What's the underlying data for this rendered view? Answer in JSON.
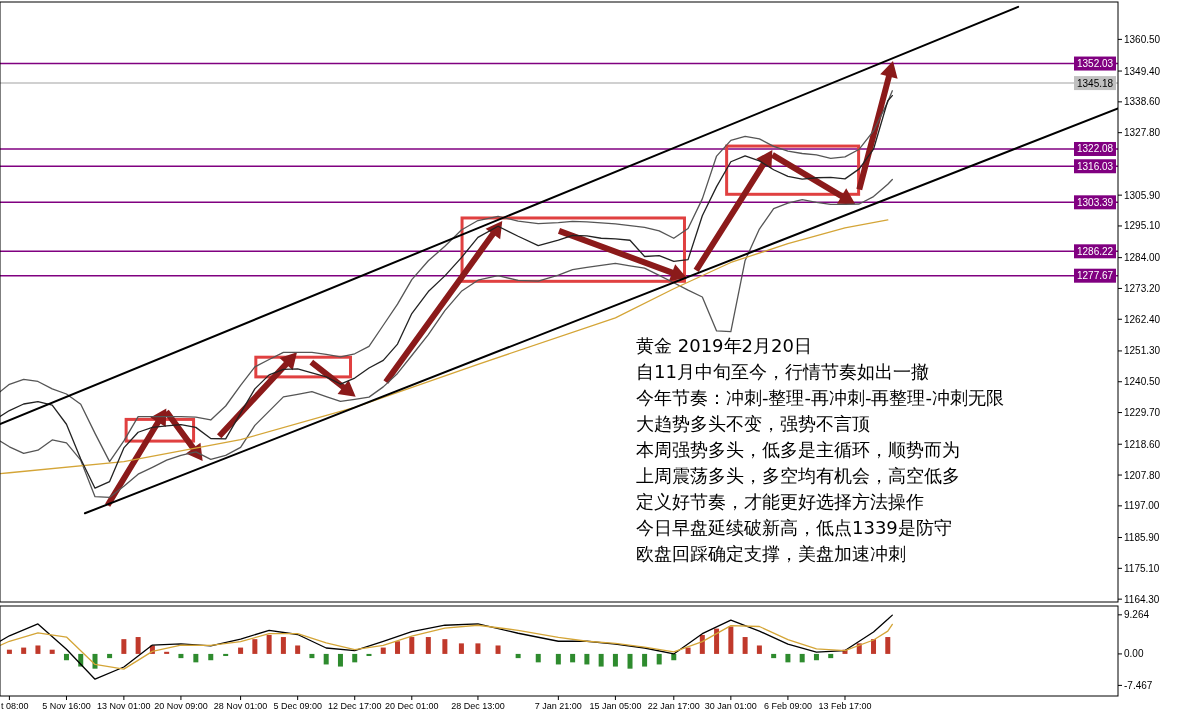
{
  "chart_data": [
    {
      "type": "line",
      "xlim": [
        "2018-10-28T03:00",
        "2019-03-20T19:00"
      ],
      "ylim": [
        1163.3,
        1373.6
      ],
      "yticks": [
        {
          "value": 1164.3,
          "label": "1164.30"
        },
        {
          "value": 1175.1,
          "label": "1175.10"
        },
        {
          "value": 1185.9,
          "label": "1185.90"
        },
        {
          "value": 1197,
          "label": "1197.00"
        },
        {
          "value": 1207.8,
          "label": "1207.80"
        },
        {
          "value": 1218.6,
          "label": "1218.60"
        },
        {
          "value": 1229.7,
          "label": "1229.70"
        },
        {
          "value": 1240.5,
          "label": "1240.50"
        },
        {
          "value": 1251.3,
          "label": "1251.30"
        },
        {
          "value": 1262.4,
          "label": "1262.40"
        },
        {
          "value": 1273.2,
          "label": "1273.20"
        },
        {
          "value": 1284,
          "label": "1284.00"
        },
        {
          "value": 1295.1,
          "label": "1295.10"
        },
        {
          "value": 1305.9,
          "label": "1305.90"
        },
        {
          "value": 1327.8,
          "label": "1327.80"
        },
        {
          "value": 1338.6,
          "label": "1338.60"
        },
        {
          "value": 1349.4,
          "label": "1349.40"
        },
        {
          "value": 1360.5,
          "label": "1360.50"
        }
      ],
      "tick_labels": "y",
      "grid": false,
      "ref_lines": [
        {
          "axis": "y",
          "value": 1352.03,
          "label": "1352.03",
          "color": "#800080"
        },
        {
          "axis": "y",
          "value": 1345.18,
          "label": "1345.18",
          "color": "#c0c0c0"
        },
        {
          "axis": "y",
          "value": 1322.08,
          "label": "1322.08",
          "color": "#800080"
        },
        {
          "axis": "y",
          "value": 1316.03,
          "label": "1316.03",
          "color": "#800080"
        },
        {
          "axis": "y",
          "value": 1303.39,
          "label": "1303.39",
          "color": "#800080"
        },
        {
          "axis": "y",
          "value": 1286.22,
          "label": "1286.22",
          "color": "#800080"
        },
        {
          "axis": "y",
          "value": 1277.67,
          "label": "1277.67",
          "color": "#800080"
        }
      ],
      "x": [
        "2018-10-28T03:00",
        "2018-10-29T08:00",
        "2018-10-31T04:00",
        "2018-11-02T00:00",
        "2018-11-03T20:00",
        "2018-11-05T16:00",
        "2018-11-07T12:00",
        "2018-11-09T08:00",
        "2018-11-11T05:00",
        "2018-11-13T01:00",
        "2018-11-14T21:00",
        "2018-11-16T17:00",
        "2018-11-18T13:00",
        "2018-11-20T09:00",
        "2018-11-22T07:00",
        "2018-11-24T05:00",
        "2018-11-26T03:00",
        "2018-11-28T01:00",
        "2018-11-29T21:00",
        "2018-12-01T17:00",
        "2018-12-03T13:00",
        "2018-12-05T09:00",
        "2018-12-07T05:00",
        "2018-12-09T01:00",
        "2018-12-10T21:00",
        "2018-12-12T17:00",
        "2018-12-14T13:00",
        "2018-12-16T09:00",
        "2018-12-18T05:00",
        "2018-12-20T01:00",
        "2018-12-22T04:00",
        "2018-12-24T07:00",
        "2018-12-26T10:00",
        "2018-12-28T13:00",
        "2018-12-31T03:00",
        "2019-01-02T17:00",
        "2019-01-05T07:00",
        "2019-01-07T21:00",
        "2019-01-09T17:00",
        "2019-01-11T13:00",
        "2019-01-13T09:00",
        "2019-01-15T05:00",
        "2019-01-17T02:00",
        "2019-01-18T23:00",
        "2019-01-20T20:00",
        "2019-01-22T17:00",
        "2019-01-24T13:00",
        "2019-01-26T09:00",
        "2019-01-28T05:00",
        "2019-01-30T01:00",
        "2019-01-31T21:00",
        "2019-02-02T17:00",
        "2019-02-04T13:00",
        "2019-02-06T09:00",
        "2019-02-08T05:00",
        "2019-02-10T01:00",
        "2019-02-11T21:00",
        "2019-02-13T17:00",
        "2019-02-15T13:00",
        "2019-02-17T09:00",
        "2019-02-19T05:00",
        "2019-02-19T19:00"
      ],
      "series": [
        {
          "color": "#555555",
          "values": [
            1237.0,
            1239.6,
            1241.3,
            1240.6,
            1238.0,
            1236.2,
            1232.6,
            1222.4,
            1212.5,
            1219.8,
            1228.3,
            1228.3,
            1228.3,
            1228.3,
            1228.1,
            1227.1,
            1232.0,
            1239.2,
            1245.7,
            1248.3,
            1250.8,
            1250.8,
            1250.8,
            1250.1,
            1249.2,
            1250.3,
            1252.9,
            1260.3,
            1267.7,
            1276.3,
            1282.9,
            1288.0,
            1293.7,
            1297.0,
            1298.5,
            1296.8,
            1295.9,
            1296.3,
            1296.7,
            1296.5,
            1296.2,
            1295.8,
            1295.2,
            1294.6,
            1293.4,
            1290.8,
            1294.2,
            1304.6,
            1319.6,
            1325.1,
            1326.5,
            1325.6,
            1323.0,
            1321.3,
            1320.5,
            1320.0,
            1318.8,
            1319.3,
            1322.0,
            1328.4,
            1338.6,
            1342.5
          ]
        },
        {
          "color": "#555555",
          "values": [
            1219.7,
            1217.7,
            1215.4,
            1216.5,
            1220.1,
            1219.1,
            1213.0,
            1200.2,
            1200.0,
            1203.9,
            1208.1,
            1210.5,
            1213.0,
            1214.7,
            1215.9,
            1213.3,
            1214.7,
            1217.5,
            1225.2,
            1230.2,
            1235.2,
            1236.1,
            1237.0,
            1235.3,
            1233.6,
            1234.3,
            1235.1,
            1238.7,
            1243.4,
            1249.7,
            1257.0,
            1265.4,
            1272.2,
            1276.1,
            1277.7,
            1276.0,
            1275.8,
            1277.9,
            1279.8,
            1280.6,
            1281.3,
            1282.0,
            1281.1,
            1280.3,
            1277.8,
            1275.2,
            1272.6,
            1270.2,
            1258.3,
            1258.1,
            1283.0,
            1294.0,
            1301.2,
            1303.1,
            1304.3,
            1303.4,
            1302.7,
            1302.7,
            1302.8,
            1305.4,
            1309.7,
            1311.4
          ]
        },
        {
          "color": "#d4a537",
          "x": [
            "2018-10-28T03:00",
            "2018-10-29T08:00",
            "2018-11-13T01:00",
            "2018-11-28T01:00",
            "2018-12-12T17:00",
            "2018-12-28T13:00",
            "2019-01-15T05:00",
            "2019-01-22T17:00",
            "2019-01-30T01:00",
            "2019-02-06T09:00",
            "2019-02-13T17:00",
            "2019-02-19T05:00"
          ],
          "values": [
            1208.3,
            1208.6,
            1212.5,
            1220.2,
            1231.5,
            1246.6,
            1262.9,
            1273.1,
            1282.3,
            1288.9,
            1294.4,
            1297.2
          ]
        },
        {
          "color": "#222222",
          "values": [
            1228.3,
            1230.4,
            1232.7,
            1233.5,
            1232.3,
            1225.6,
            1213.4,
            1203.2,
            1205.5,
            1217.3,
            1222.8,
            1224.5,
            1225.0,
            1225.5,
            1224.5,
            1220.6,
            1220.5,
            1229.5,
            1238.0,
            1242.9,
            1244.8,
            1245.0,
            1243.6,
            1242.2,
            1239.7,
            1241.8,
            1245.3,
            1248.0,
            1253.7,
            1264.4,
            1272.1,
            1277.6,
            1284.0,
            1291.1,
            1295.0,
            1291.5,
            1288.2,
            1290.1,
            1291.8,
            1291.6,
            1290.8,
            1290.6,
            1290.1,
            1284.4,
            1284.7,
            1282.7,
            1283.3,
            1298.7,
            1308.9,
            1317.6,
            1319.7,
            1317.9,
            1314.8,
            1312.5,
            1311.5,
            1312.0,
            1312.1,
            1311.6,
            1315.1,
            1322.0,
            1339.0,
            1340.8
          ]
        },
        {
          "color": "#000000",
          "x": [
            "2018-10-28T03:00",
            "2019-03-07T23:00"
          ],
          "values": [
            1225.7,
            1371.9
          ]
        },
        {
          "color": "#000000",
          "x": [
            "2018-11-08T01:00",
            "2019-03-20T19:00"
          ],
          "values": [
            1194.4,
            1336.3
          ]
        }
      ],
      "annotations": [
        "黄金  2019年2月20日",
        "自11月中旬至今，行情节奏如出一撤",
        "今年节奏：冲刺-整理-再冲刺-再整理-冲刺无限",
        "大趋势多头不变，强势不言顶",
        "本周强势多头，低多是主循环，顺势而为",
        "上周震荡多头，多空均有机会，高空低多",
        "定义好节奏，才能更好选择方法操作",
        "今日早盘延续破新高，低点1339是防守",
        "欧盘回踩确定支撑，美盘加速冲刺"
      ]
    },
    {
      "type": "line",
      "xlim": [
        "2018-10-28T03:00",
        "2019-03-20T19:00"
      ],
      "ylim": [
        -9.98,
        11.36
      ],
      "xticks": [
        {
          "value": "2018-10-29T08:00",
          "label": "t 08:00"
        },
        {
          "value": "2018-11-05T16:00",
          "label": "5 Nov 16:00"
        },
        {
          "value": "2018-11-13T01:00",
          "label": "13 Nov 01:00"
        },
        {
          "value": "2018-11-20T09:00",
          "label": "20 Nov 09:00"
        },
        {
          "value": "2018-11-28T01:00",
          "label": "28 Nov 01:00"
        },
        {
          "value": "2018-12-05T09:00",
          "label": "5 Dec 09:00"
        },
        {
          "value": "2018-12-12T17:00",
          "label": "12 Dec 17:00"
        },
        {
          "value": "2018-12-20T01:00",
          "label": "20 Dec 01:00"
        },
        {
          "value": "2018-12-28T13:00",
          "label": "28 Dec 13:00"
        },
        {
          "value": "2019-01-07T21:00",
          "label": "7 Jan 21:00"
        },
        {
          "value": "2019-01-15T05:00",
          "label": "15 Jan 05:00"
        },
        {
          "value": "2019-01-22T17:00",
          "label": "22 Jan 17:00"
        },
        {
          "value": "2019-01-30T01:00",
          "label": "30 Jan 01:00"
        },
        {
          "value": "2019-02-06T09:00",
          "label": "6 Feb 09:00"
        },
        {
          "value": "2019-02-13T17:00",
          "label": "13 Feb 17:00"
        }
      ],
      "yticks": [
        {
          "value": 9.264,
          "label": "9.264"
        },
        {
          "value": 0,
          "label": "0.00"
        },
        {
          "value": -7.467,
          "label": "-7.467"
        }
      ],
      "grid": false,
      "x": [
        "2018-10-28T03:00",
        "2018-10-29T08:00",
        "2018-11-02T00:00",
        "2018-11-05T16:00",
        "2018-11-09T08:00",
        "2018-11-13T01:00",
        "2018-11-16T17:00",
        "2018-11-20T09:00",
        "2018-11-24T05:00",
        "2018-11-28T01:00",
        "2018-12-01T17:00",
        "2018-12-05T09:00",
        "2018-12-09T01:00",
        "2018-12-12T17:00",
        "2018-12-16T09:00",
        "2018-12-20T01:00",
        "2018-12-24T07:00",
        "2018-12-28T13:00",
        "2019-01-02T17:00",
        "2019-01-07T21:00",
        "2019-01-11T13:00",
        "2019-01-15T05:00",
        "2019-01-18T23:00",
        "2019-01-22T17:00",
        "2019-01-26T09:00",
        "2019-01-30T01:00",
        "2019-02-02T17:00",
        "2019-02-06T09:00",
        "2019-02-10T01:00",
        "2019-02-13T17:00",
        "2019-02-17T09:00",
        "2019-02-19T05:00",
        "2019-02-19T19:00"
      ],
      "series": [
        {
          "type": "bar",
          "color": "#c0392b",
          "x": [
            "2018-10-29T08:00",
            "2018-10-31T04:00",
            "2018-11-02T00:00",
            "2018-11-03T20:00",
            "2018-11-13T01:00",
            "2018-11-14T21:00",
            "2018-11-16T17:00",
            "2018-11-18T13:00",
            "2018-11-28T01:00",
            "2018-11-29T21:00",
            "2018-12-01T17:00",
            "2018-12-03T13:00",
            "2018-12-05T09:00",
            "2018-12-16T09:00",
            "2018-12-18T05:00",
            "2018-12-20T01:00",
            "2018-12-22T04:00",
            "2018-12-24T07:00",
            "2018-12-26T10:00",
            "2018-12-28T13:00",
            "2018-12-31T03:00",
            "2019-01-24T13:00",
            "2019-01-26T09:00",
            "2019-01-28T05:00",
            "2019-01-30T01:00",
            "2019-01-31T21:00",
            "2019-02-02T17:00",
            "2019-02-13T17:00",
            "2019-02-15T13:00",
            "2019-02-17T09:00",
            "2019-02-19T05:00"
          ],
          "values": [
            1.0,
            1.5,
            2.0,
            1.0,
            3.5,
            4.0,
            2.0,
            0.5,
            1.5,
            3.5,
            4.5,
            4.0,
            2.0,
            1.5,
            3.0,
            4.0,
            4.0,
            3.5,
            2.5,
            2.5,
            2.0,
            1.5,
            4.5,
            6.0,
            6.5,
            4.0,
            2.0,
            1.0,
            2.5,
            3.5,
            4.0
          ]
        },
        {
          "type": "bar",
          "color": "#2e8b2e",
          "x": [
            "2018-11-05T16:00",
            "2018-11-07T12:00",
            "2018-11-09T08:00",
            "2018-11-11T05:00",
            "2018-11-20T09:00",
            "2018-11-22T07:00",
            "2018-11-24T05:00",
            "2018-11-26T03:00",
            "2018-12-07T05:00",
            "2018-12-09T01:00",
            "2018-12-10T21:00",
            "2018-12-12T17:00",
            "2018-12-14T13:00",
            "2019-01-02T17:00",
            "2019-01-05T07:00",
            "2019-01-07T21:00",
            "2019-01-09T17:00",
            "2019-01-11T13:00",
            "2019-01-13T09:00",
            "2019-01-15T05:00",
            "2019-01-17T02:00",
            "2019-01-18T23:00",
            "2019-01-20T20:00",
            "2019-01-22T17:00",
            "2019-02-04T13:00",
            "2019-02-06T09:00",
            "2019-02-08T05:00",
            "2019-02-10T01:00",
            "2019-02-11T21:00"
          ],
          "values": [
            -1.5,
            -3.0,
            -3.5,
            -1.0,
            -1.0,
            -2.0,
            -1.5,
            -0.5,
            -1.0,
            -2.5,
            -3.0,
            -2.0,
            -0.5,
            -1.0,
            -2.0,
            -2.5,
            -2.0,
            -2.5,
            -3.0,
            -3.0,
            -3.5,
            -3.0,
            -2.5,
            -1.5,
            -1.0,
            -2.0,
            -2.0,
            -1.5,
            -1.0
          ]
        },
        {
          "color": "#000000",
          "values": [
            3.0,
            4.3,
            7.1,
            1.1,
            -6.0,
            -3.1,
            2.1,
            2.4,
            1.9,
            3.5,
            5.6,
            4.6,
            1.4,
            0.8,
            3.0,
            5.3,
            6.8,
            7.1,
            4.9,
            3.0,
            3.0,
            2.3,
            1.4,
            0.0,
            4.8,
            8.0,
            5.4,
            2.3,
            0.4,
            0.8,
            5.2,
            8.2,
            9.2
          ]
        },
        {
          "color": "#d4a537",
          "values": [
            2.0,
            3.0,
            5.0,
            4.0,
            -2.5,
            -3.6,
            0.6,
            2.1,
            2.0,
            2.9,
            4.8,
            4.8,
            2.6,
            1.0,
            2.0,
            4.2,
            6.1,
            6.8,
            5.6,
            3.9,
            3.0,
            2.5,
            1.6,
            0.5,
            2.9,
            6.7,
            6.5,
            3.4,
            1.2,
            0.8,
            3.3,
            5.4,
            7.0
          ]
        }
      ]
    }
  ]
}
